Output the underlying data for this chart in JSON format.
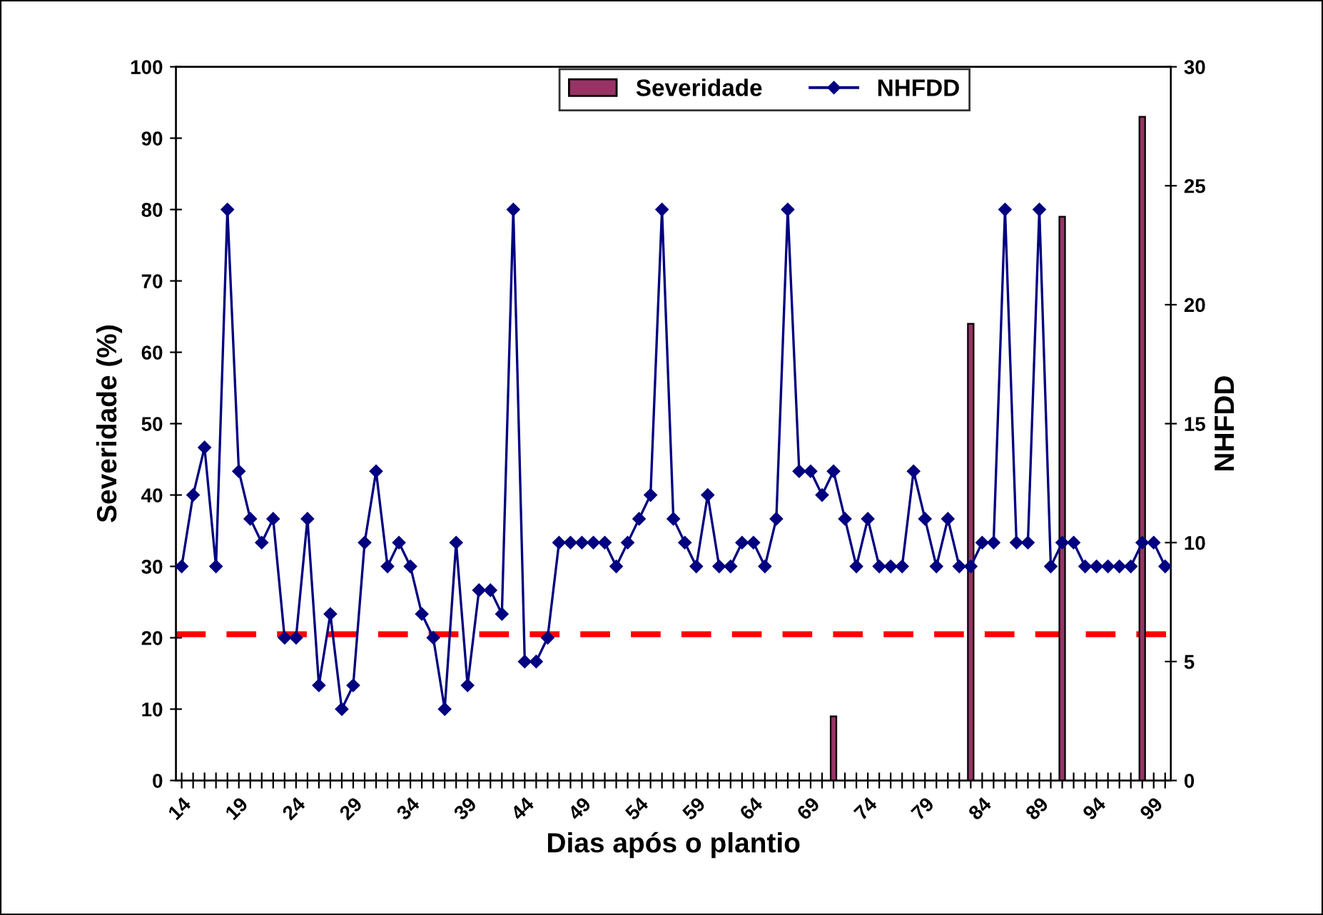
{
  "chart_data": {
    "type": "bar",
    "xlabel": "Dias após o plantio",
    "ylabel": "Severidade (%)",
    "y2label": "NHFDD",
    "categories": [
      "14",
      null,
      null,
      null,
      null,
      "19",
      null,
      null,
      null,
      null,
      "24",
      null,
      null,
      null,
      null,
      "29",
      null,
      null,
      null,
      null,
      "34",
      null,
      null,
      null,
      null,
      "39",
      null,
      null,
      null,
      null,
      "44",
      null,
      null,
      null,
      null,
      "49",
      null,
      null,
      null,
      null,
      "54",
      null,
      null,
      null,
      null,
      "59",
      null,
      null,
      null,
      null,
      "64",
      null,
      null,
      null,
      null,
      "69",
      null,
      null,
      null,
      null,
      "74",
      null,
      null,
      null,
      null,
      "79",
      null,
      null,
      null,
      null,
      "84",
      null,
      null,
      null,
      null,
      "89",
      null,
      null,
      null,
      null,
      "94",
      null,
      null,
      null,
      null,
      "99",
      null
    ],
    "series": [
      {
        "name": "Severidade",
        "color": "#993366",
        "values": [
          null,
          null,
          null,
          null,
          null,
          null,
          null,
          null,
          null,
          null,
          null,
          null,
          null,
          null,
          null,
          null,
          null,
          null,
          null,
          null,
          null,
          null,
          null,
          null,
          null,
          null,
          null,
          null,
          null,
          null,
          null,
          null,
          null,
          null,
          null,
          null,
          null,
          null,
          null,
          null,
          null,
          null,
          null,
          null,
          null,
          null,
          null,
          null,
          null,
          null,
          null,
          null,
          null,
          null,
          null,
          null,
          null,
          9,
          null,
          null,
          null,
          null,
          null,
          null,
          null,
          null,
          null,
          null,
          null,
          64,
          null,
          null,
          null,
          null,
          null,
          null,
          null,
          79,
          null,
          null,
          null,
          null,
          null,
          null,
          93,
          null,
          null
        ]
      },
      {
        "name": "NHFDD",
        "type": "line",
        "axis": "y2",
        "color": "#000080",
        "marker": "diamond",
        "line_style": "solid",
        "values": [
          9,
          12,
          14,
          9,
          24,
          13,
          11,
          10,
          11,
          6,
          6,
          11,
          4,
          7,
          3,
          4,
          10,
          13,
          9,
          10,
          9,
          7,
          6,
          3,
          10,
          4,
          8,
          8,
          7,
          24,
          5,
          5,
          6,
          10,
          10,
          10,
          10,
          10,
          9,
          10,
          11,
          12,
          24,
          11,
          10,
          9,
          12,
          9,
          9,
          10,
          10,
          9,
          11,
          24,
          13,
          13,
          12,
          13,
          11,
          9,
          11,
          9,
          9,
          9,
          13,
          11,
          9,
          11,
          9,
          9,
          10,
          10,
          24,
          10,
          10,
          24,
          9,
          10,
          10,
          9,
          9,
          9,
          9,
          9,
          10,
          10,
          9
        ]
      }
    ],
    "ylim": [
      0,
      100
    ],
    "yticks": [
      0,
      10,
      20,
      30,
      40,
      50,
      60,
      70,
      80,
      90,
      100
    ],
    "y2lim": [
      0,
      30
    ],
    "y2ticks": [
      0,
      5,
      10,
      15,
      20,
      25,
      30
    ],
    "ref_lines": [
      {
        "axis": "y",
        "value": 20.5,
        "color": "#ff0000",
        "line_style": "dashed"
      }
    ],
    "grid": false,
    "legend": "top"
  }
}
